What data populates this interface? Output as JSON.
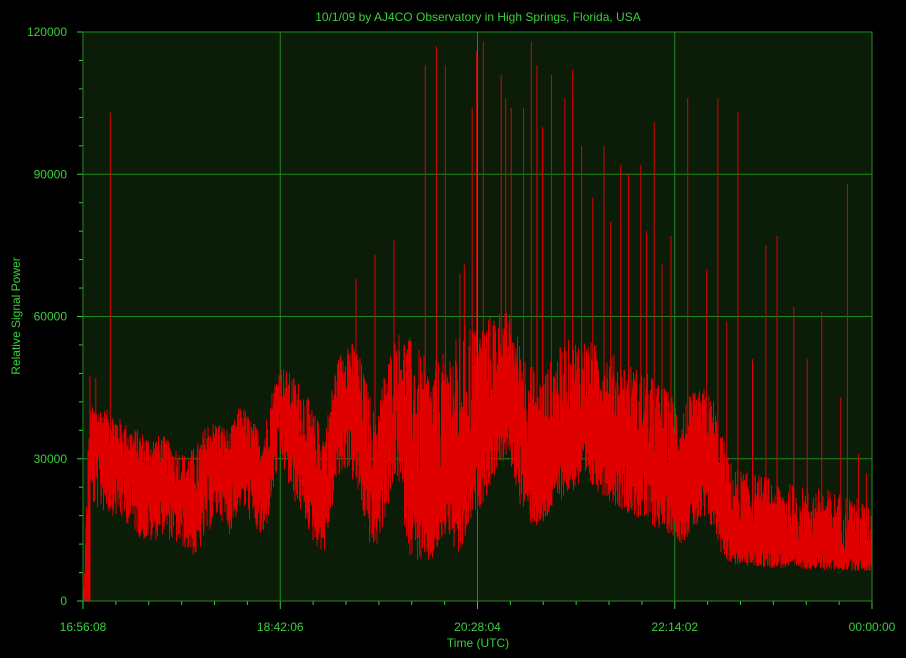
{
  "chart_data": {
    "type": "line",
    "title": "10/1/09  by  AJ4CO Observatory  in  High Springs, Florida, USA",
    "xlabel": "Time (UTC)",
    "ylabel": "Relative Signal Power",
    "x_tick_labels": [
      "16:56:08",
      "18:42:06",
      "20:28:04",
      "22:14:02",
      "00:00:00"
    ],
    "y_tick_labels": [
      "0",
      "30000",
      "60000",
      "90000",
      "120000"
    ],
    "xlim_hours": [
      16.9356,
      24.0
    ],
    "ylim": [
      0,
      120000
    ],
    "grid": true,
    "colors": {
      "background": "#000000",
      "plot_bg": "#0b1d08",
      "grid": "#1f8a1f",
      "text": "#39d139",
      "series": "#e00000"
    },
    "series": [
      {
        "x_hours": [
          16.94,
          17.0,
          17.0,
          17.08,
          17.2,
          17.35,
          17.45,
          17.55,
          17.65,
          17.75,
          17.85,
          17.95,
          18.05,
          18.15,
          18.25,
          18.35,
          18.45,
          18.55,
          18.62,
          18.7,
          18.8,
          18.9,
          19.0,
          19.1,
          19.2,
          19.3,
          19.4,
          19.5,
          19.55,
          19.65,
          19.75,
          19.85,
          19.95,
          20.05,
          20.15,
          20.2,
          20.3,
          20.4,
          20.45,
          20.55,
          20.65,
          20.75,
          20.85,
          20.95,
          21.05,
          21.15,
          21.25,
          21.4,
          21.55,
          21.7,
          21.85,
          22.0,
          22.1,
          22.2,
          22.3,
          22.4,
          22.5,
          22.58,
          22.65,
          22.72,
          22.8,
          22.95,
          23.1,
          23.25,
          23.4,
          23.55,
          23.7,
          23.85,
          24.0
        ],
        "y_center": [
          0,
          0,
          33000,
          34000,
          31000,
          28000,
          25000,
          24000,
          26000,
          23000,
          21000,
          19000,
          27000,
          29000,
          25000,
          32000,
          28000,
          24000,
          33000,
          42000,
          35000,
          30000,
          24000,
          22000,
          38000,
          43000,
          37000,
          26000,
          22000,
          33000,
          42000,
          30000,
          20000,
          16000,
          24000,
          30000,
          21000,
          28000,
          31000,
          34000,
          40000,
          42000,
          35000,
          27000,
          25000,
          30000,
          34000,
          36000,
          35000,
          33000,
          30000,
          28000,
          26000,
          24000,
          21000,
          25000,
          28000,
          26000,
          20000,
          14000,
          12000,
          11500,
          11000,
          10500,
          10200,
          10000,
          9800,
          9600,
          9500
        ],
        "y_max": [
          0,
          52000,
          41000,
          41000,
          40000,
          37000,
          36000,
          35000,
          35000,
          33000,
          31000,
          33000,
          38000,
          38000,
          36000,
          42000,
          38000,
          36000,
          44000,
          50000,
          48000,
          46000,
          40000,
          36000,
          50000,
          56000,
          53000,
          44000,
          40000,
          50000,
          57000,
          56000,
          53000,
          50000,
          52000,
          54000,
          56000,
          60000,
          58000,
          60000,
          62000,
          61000,
          55000,
          50000,
          48000,
          52000,
          55000,
          56000,
          54000,
          52000,
          50000,
          48000,
          46000,
          44000,
          42000,
          44000,
          45000,
          43000,
          36000,
          30000,
          28000,
          27000,
          26000,
          25000,
          24000,
          24000,
          23000,
          22000,
          20000
        ],
        "y_min": [
          0,
          0,
          20000,
          19000,
          18000,
          16000,
          13000,
          12000,
          14000,
          12000,
          11000,
          9000,
          14000,
          18000,
          14000,
          20000,
          16000,
          12000,
          20000,
          30000,
          22000,
          18000,
          12000,
          10000,
          24000,
          28000,
          22000,
          12000,
          10000,
          18000,
          26000,
          10000,
          8000,
          8000,
          12000,
          14000,
          8000,
          16000,
          18000,
          22000,
          28000,
          30000,
          20000,
          16000,
          15000,
          20000,
          22000,
          24000,
          23000,
          20000,
          18000,
          16000,
          15000,
          14000,
          12000,
          15000,
          16000,
          15000,
          10000,
          8000,
          7500,
          7200,
          7000,
          6800,
          6600,
          6500,
          6400,
          6300,
          6200
        ]
      }
    ],
    "spikes": [
      [
        17.18,
        103000
      ],
      [
        17.05,
        47000
      ],
      [
        19.38,
        68000
      ],
      [
        19.55,
        73000
      ],
      [
        19.72,
        76000
      ],
      [
        20.0,
        113000
      ],
      [
        20.1,
        117000
      ],
      [
        20.18,
        113000
      ],
      [
        20.31,
        69000
      ],
      [
        20.35,
        71000
      ],
      [
        20.42,
        104000
      ],
      [
        20.46,
        116000
      ],
      [
        20.52,
        118000
      ],
      [
        20.68,
        111000
      ],
      [
        20.72,
        106000
      ],
      [
        20.77,
        104000
      ],
      [
        20.88,
        104000
      ],
      [
        20.95,
        118000
      ],
      [
        21.0,
        113000
      ],
      [
        21.05,
        100000
      ],
      [
        21.13,
        111000
      ],
      [
        21.25,
        106000
      ],
      [
        21.32,
        112000
      ],
      [
        21.4,
        96000
      ],
      [
        21.5,
        85000
      ],
      [
        21.6,
        96000
      ],
      [
        21.66,
        80000
      ],
      [
        21.75,
        92000
      ],
      [
        21.82,
        90000
      ],
      [
        21.93,
        92000
      ],
      [
        21.98,
        78000
      ],
      [
        22.05,
        101000
      ],
      [
        22.12,
        71000
      ],
      [
        22.2,
        77000
      ],
      [
        22.35,
        106000
      ],
      [
        22.52,
        70000
      ],
      [
        22.62,
        106000
      ],
      [
        22.7,
        59000
      ],
      [
        22.8,
        103000
      ],
      [
        22.93,
        51000
      ],
      [
        23.05,
        75000
      ],
      [
        23.15,
        77000
      ],
      [
        23.3,
        62000
      ],
      [
        23.42,
        51000
      ],
      [
        23.55,
        61000
      ],
      [
        23.72,
        43000
      ],
      [
        23.78,
        88000
      ],
      [
        23.88,
        31000
      ],
      [
        23.95,
        27000
      ]
    ]
  }
}
